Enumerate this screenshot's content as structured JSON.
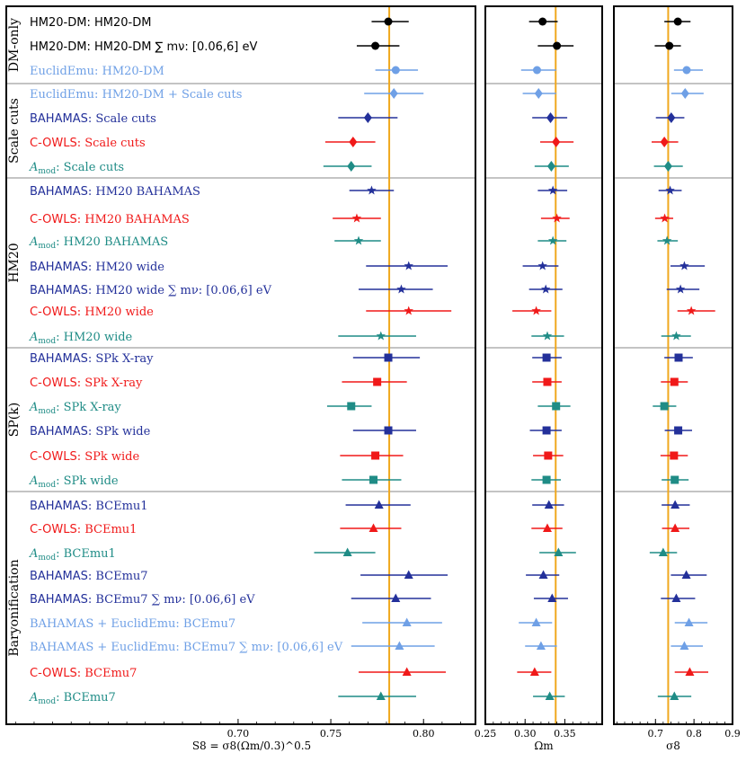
{
  "colors": {
    "black": "#000000",
    "light_blue": "#6fa0e6",
    "navy": "#23309a",
    "red": "#f01919",
    "teal": "#1f8c86",
    "fiducial": "#f0a81e",
    "divider": "#888888"
  },
  "sections": [
    {
      "name": "DM-only",
      "rows": [
        0,
        2
      ]
    },
    {
      "name": "Scale cuts",
      "rows": [
        3,
        6
      ]
    },
    {
      "name": "HM20",
      "rows": [
        7,
        13
      ]
    },
    {
      "name": "SP(k)",
      "rows": [
        14,
        19
      ]
    },
    {
      "name": "Baryonification",
      "rows": [
        20,
        28
      ]
    }
  ],
  "rows": [
    {
      "prefix": "HM20-DM",
      "suffix": ": HM20-DM",
      "prefix_sans": true,
      "suffix_sans": true,
      "color": "black",
      "marker": "circle"
    },
    {
      "prefix": "HM20-DM",
      "suffix": ": HM20-DM ∑ mν: [0.06,6] eV",
      "prefix_sans": true,
      "suffix_sans": true,
      "color": "black",
      "marker": "circle"
    },
    {
      "prefix": "EuclidEmu",
      "suffix": ": HM20-DM",
      "color": "light_blue",
      "marker": "circle"
    },
    {
      "prefix": "EuclidEmu",
      "suffix": ": HM20-DM + Scale cuts",
      "color": "light_blue",
      "marker": "diamond"
    },
    {
      "prefix": "BAHAMAS",
      "suffix": ": Scale cuts",
      "prefix_sans": true,
      "color": "navy",
      "marker": "diamond"
    },
    {
      "prefix": "C-OWLS",
      "suffix": ": Scale cuts",
      "prefix_sans": true,
      "color": "red",
      "marker": "diamond"
    },
    {
      "prefix": "Amod",
      "suffix": ": Scale cuts",
      "color": "teal",
      "marker": "diamond"
    },
    {
      "prefix": "BAHAMAS",
      "suffix": ": HM20 BAHAMAS",
      "prefix_sans": true,
      "color": "navy",
      "marker": "star"
    },
    {
      "prefix": "C-OWLS",
      "suffix": ": HM20 BAHAMAS",
      "prefix_sans": true,
      "color": "red",
      "marker": "star"
    },
    {
      "prefix": "Amod",
      "suffix": ": HM20 BAHAMAS",
      "color": "teal",
      "marker": "star"
    },
    {
      "prefix": "BAHAMAS",
      "suffix": ": HM20 wide",
      "prefix_sans": true,
      "color": "navy",
      "marker": "star"
    },
    {
      "prefix": "BAHAMAS",
      "suffix": ": HM20 wide ∑ mν: [0.06,6] eV",
      "prefix_sans": true,
      "color": "navy",
      "marker": "star"
    },
    {
      "prefix": "C-OWLS",
      "suffix": ": HM20 wide",
      "prefix_sans": true,
      "color": "red",
      "marker": "star"
    },
    {
      "prefix": "Amod",
      "suffix": ": HM20 wide",
      "color": "teal",
      "marker": "star"
    },
    {
      "prefix": "BAHAMAS",
      "suffix": ": SPk X-ray",
      "prefix_sans": true,
      "color": "navy",
      "marker": "square"
    },
    {
      "prefix": "C-OWLS",
      "suffix": ": SPk X-ray",
      "prefix_sans": true,
      "color": "red",
      "marker": "square"
    },
    {
      "prefix": "Amod",
      "suffix": ": SPk X-ray",
      "color": "teal",
      "marker": "square"
    },
    {
      "prefix": "BAHAMAS",
      "suffix": ": SPk wide",
      "prefix_sans": true,
      "color": "navy",
      "marker": "square"
    },
    {
      "prefix": "C-OWLS",
      "suffix": ": SPk wide",
      "prefix_sans": true,
      "color": "red",
      "marker": "square"
    },
    {
      "prefix": "Amod",
      "suffix": ": SPk wide",
      "color": "teal",
      "marker": "square"
    },
    {
      "prefix": "BAHAMAS",
      "suffix": ": BCEmu1",
      "prefix_sans": true,
      "color": "navy",
      "marker": "triangle"
    },
    {
      "prefix": "C-OWLS",
      "suffix": ": BCEmu1",
      "prefix_sans": true,
      "color": "red",
      "marker": "triangle"
    },
    {
      "prefix": "Amod",
      "suffix": ": BCEmu1",
      "color": "teal",
      "marker": "triangle"
    },
    {
      "prefix": "BAHAMAS",
      "suffix": ": BCEmu7",
      "prefix_sans": true,
      "color": "navy",
      "marker": "triangle"
    },
    {
      "prefix": "BAHAMAS",
      "suffix": ": BCEmu7 ∑ mν: [0.06,6] eV",
      "prefix_sans": true,
      "color": "navy",
      "marker": "triangle"
    },
    {
      "prefix": "BAHAMAS + EuclidEmu",
      "suffix": ": BCEmu7",
      "color": "light_blue",
      "marker": "triangle"
    },
    {
      "prefix": "BAHAMAS + EuclidEmu",
      "suffix": ": BCEmu7 ∑ mν: [0.06,6] eV",
      "color": "light_blue",
      "marker": "triangle"
    },
    {
      "prefix": "C-OWLS",
      "suffix": ": BCEmu7",
      "prefix_sans": true,
      "color": "red",
      "marker": "triangle"
    },
    {
      "prefix": "Amod",
      "suffix": ": BCEmu7",
      "color": "teal",
      "marker": "triangle"
    }
  ],
  "chart_data": [
    {
      "type": "scatter",
      "title": "",
      "xlabel": "S8 = σ8(Ωm/0.3)^0.5",
      "xlim": [
        0.575,
        0.828
      ],
      "xticks": [
        "0.70",
        "0.75",
        "0.80"
      ],
      "xtick_values": [
        0.7,
        0.75,
        0.8
      ],
      "fiducial": 0.7815,
      "values": [
        0.781,
        0.774,
        0.785,
        0.784,
        0.77,
        0.762,
        0.761,
        0.772,
        0.764,
        0.765,
        0.792,
        0.788,
        0.792,
        0.777,
        0.781,
        0.775,
        0.761,
        0.781,
        0.774,
        0.773,
        0.776,
        0.773,
        0.759,
        0.792,
        0.785,
        0.791,
        0.787,
        0.791,
        0.777
      ],
      "err_low": [
        0.009,
        0.01,
        0.011,
        0.016,
        0.016,
        0.015,
        0.015,
        0.012,
        0.013,
        0.013,
        0.023,
        0.023,
        0.023,
        0.023,
        0.019,
        0.019,
        0.013,
        0.019,
        0.019,
        0.017,
        0.018,
        0.018,
        0.018,
        0.026,
        0.024,
        0.024,
        0.026,
        0.026,
        0.023
      ],
      "err_high": [
        0.011,
        0.013,
        0.012,
        0.016,
        0.016,
        0.012,
        0.011,
        0.012,
        0.013,
        0.012,
        0.021,
        0.017,
        0.023,
        0.019,
        0.017,
        0.016,
        0.011,
        0.015,
        0.015,
        0.015,
        0.017,
        0.015,
        0.015,
        0.021,
        0.019,
        0.019,
        0.019,
        0.021,
        0.019
      ]
    },
    {
      "type": "scatter",
      "title": "",
      "xlabel": "Ωm",
      "xlim": [
        0.25,
        0.397
      ],
      "xticks": [
        "0.25",
        "0.30",
        "0.35"
      ],
      "xtick_values": [
        0.25,
        0.3,
        0.35
      ],
      "fiducial": 0.3385,
      "values": [
        0.322,
        0.34,
        0.315,
        0.317,
        0.332,
        0.339,
        0.333,
        0.335,
        0.34,
        0.335,
        0.322,
        0.326,
        0.314,
        0.328,
        0.327,
        0.328,
        0.339,
        0.327,
        0.329,
        0.327,
        0.33,
        0.328,
        0.342,
        0.323,
        0.334,
        0.314,
        0.32,
        0.312,
        0.331
      ],
      "err_low": [
        0.017,
        0.024,
        0.02,
        0.02,
        0.023,
        0.02,
        0.021,
        0.019,
        0.02,
        0.019,
        0.025,
        0.021,
        0.03,
        0.02,
        0.018,
        0.019,
        0.023,
        0.021,
        0.019,
        0.019,
        0.021,
        0.02,
        0.024,
        0.022,
        0.023,
        0.022,
        0.02,
        0.022,
        0.021
      ],
      "err_high": [
        0.019,
        0.021,
        0.024,
        0.022,
        0.021,
        0.022,
        0.022,
        0.018,
        0.016,
        0.017,
        0.02,
        0.021,
        0.019,
        0.021,
        0.019,
        0.018,
        0.018,
        0.019,
        0.019,
        0.018,
        0.019,
        0.019,
        0.022,
        0.02,
        0.02,
        0.02,
        0.02,
        0.021,
        0.019
      ]
    },
    {
      "type": "scatter",
      "title": "",
      "xlabel": "σ8",
      "xlim": [
        0.592,
        0.9
      ],
      "xticks": [
        "0.7",
        "0.8",
        "0.9"
      ],
      "xtick_values": [
        0.7,
        0.8,
        0.9
      ],
      "fiducial": 0.733,
      "values": [
        0.758,
        0.736,
        0.781,
        0.777,
        0.741,
        0.723,
        0.733,
        0.738,
        0.724,
        0.73,
        0.775,
        0.765,
        0.793,
        0.754,
        0.76,
        0.749,
        0.723,
        0.759,
        0.748,
        0.75,
        0.751,
        0.751,
        0.72,
        0.78,
        0.754,
        0.787,
        0.775,
        0.789,
        0.749
      ],
      "err_low": [
        0.035,
        0.038,
        0.033,
        0.036,
        0.04,
        0.033,
        0.037,
        0.03,
        0.025,
        0.025,
        0.036,
        0.036,
        0.036,
        0.039,
        0.037,
        0.035,
        0.03,
        0.035,
        0.035,
        0.034,
        0.035,
        0.034,
        0.035,
        0.04,
        0.04,
        0.037,
        0.035,
        0.039,
        0.043
      ],
      "err_high": [
        0.033,
        0.03,
        0.042,
        0.048,
        0.034,
        0.036,
        0.038,
        0.03,
        0.022,
        0.028,
        0.053,
        0.049,
        0.062,
        0.038,
        0.037,
        0.035,
        0.031,
        0.036,
        0.036,
        0.036,
        0.038,
        0.037,
        0.036,
        0.053,
        0.049,
        0.048,
        0.048,
        0.048,
        0.044
      ]
    }
  ]
}
